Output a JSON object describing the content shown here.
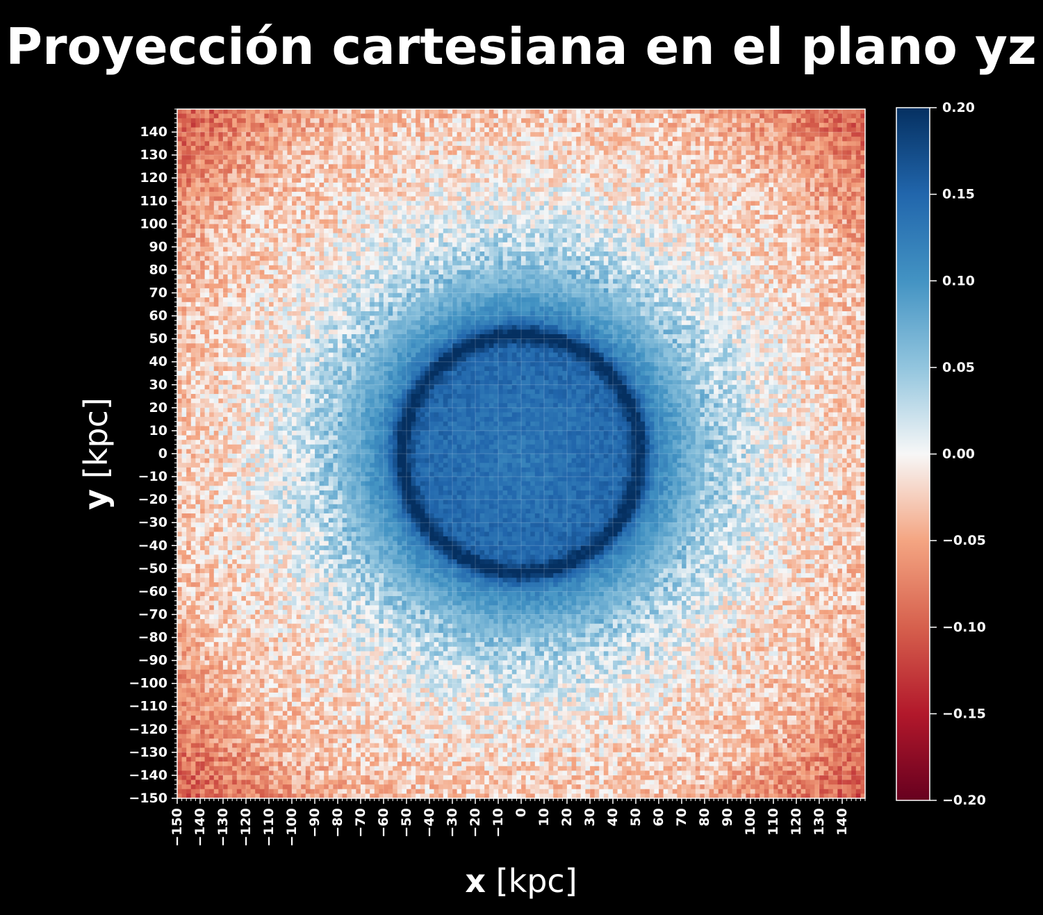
{
  "chart_data": {
    "type": "heatmap",
    "title": "Proyección cartesiana en el plano yz",
    "xlabel_bold": "x",
    "xlabel_unit": "[kpc]",
    "ylabel_bold": "y",
    "ylabel_unit": "[kpc]",
    "xlim": [
      -150,
      150
    ],
    "ylim": [
      -150,
      150
    ],
    "x_ticks": [
      -150,
      -140,
      -130,
      -120,
      -110,
      -100,
      -90,
      -80,
      -70,
      -60,
      -50,
      -40,
      -30,
      -20,
      -10,
      0,
      10,
      20,
      30,
      40,
      50,
      60,
      70,
      80,
      90,
      100,
      110,
      120,
      130,
      140
    ],
    "y_ticks": [
      -150,
      -140,
      -130,
      -120,
      -110,
      -100,
      -90,
      -80,
      -70,
      -60,
      -50,
      -40,
      -30,
      -20,
      -10,
      0,
      10,
      20,
      30,
      40,
      50,
      60,
      70,
      80,
      90,
      100,
      110,
      120,
      130,
      140
    ],
    "grid": true,
    "colormap": "RdBu",
    "colorbar": {
      "vmin": -0.2,
      "vmax": 0.2,
      "ticks": [
        "0.20",
        "0.15",
        "0.10",
        "0.05",
        "0.00",
        "−0.05",
        "−0.10",
        "−0.15",
        "−0.20"
      ],
      "tick_values": [
        0.2,
        0.15,
        0.1,
        0.05,
        0.0,
        -0.05,
        -0.1,
        -0.15,
        -0.2
      ]
    },
    "pattern": {
      "center_value": 0.13,
      "ring_radius_kpc": 52,
      "ring_value": 0.19,
      "edge_value": -0.06,
      "corner_value": -0.12
    },
    "colors": {
      "background": "#000000",
      "text": "#ffffff",
      "deep_blue": "#053061",
      "white": "#f7f7f7",
      "deep_red": "#67001f"
    }
  }
}
